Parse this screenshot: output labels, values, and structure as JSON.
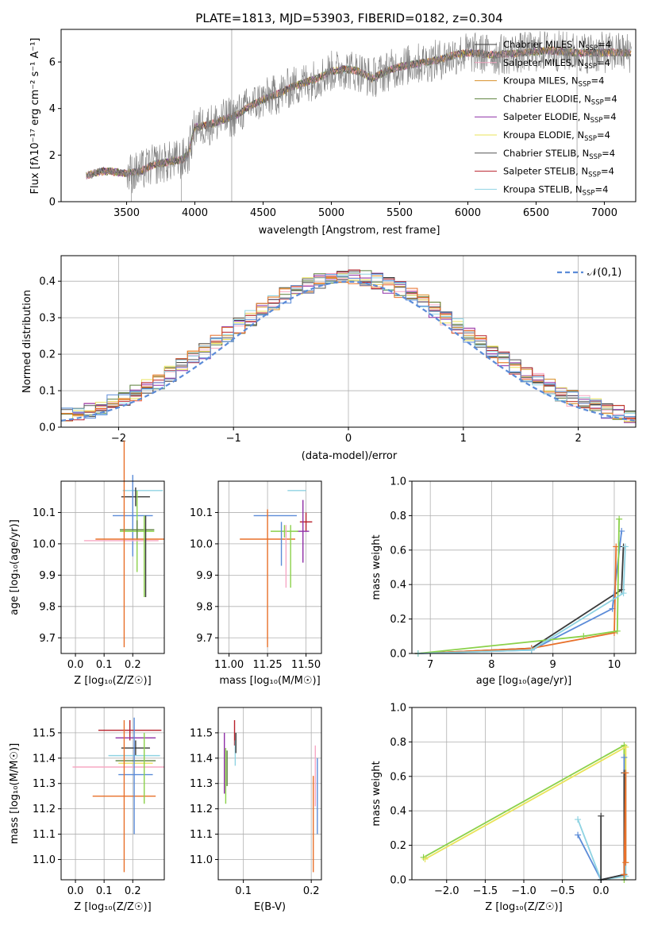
{
  "charts": {
    "spectrum": {
      "type": "line",
      "title": "PLATE=1813, MJD=53903, FIBERID=0182, z=0.304",
      "xlabel": "wavelength [Angstrom, rest frame]",
      "ylabel": "Flux [fλ10⁻¹⁷ erg cm⁻² s⁻¹ A⁻¹]",
      "xlim": [
        3020,
        7230
      ],
      "ylim": [
        0,
        7.4
      ],
      "xticks": [
        3500,
        4000,
        4500,
        5000,
        5500,
        6000,
        6500,
        7000
      ],
      "yticks": [
        0,
        2,
        4,
        6
      ],
      "legend_position": "right",
      "series": [
        {
          "name": "Chabrier MILES, N_SSP=4",
          "color": "#3a3a3a"
        },
        {
          "name": "Salpeter MILES, N_SSP=4",
          "color": "#f7a8c4"
        },
        {
          "name": "Kroupa MILES, N_SSP=4",
          "color": "#d8912a"
        },
        {
          "name": "Chabrier ELODIE, N_SSP=4",
          "color": "#5a7f3a"
        },
        {
          "name": "Salpeter ELODIE, N_SSP=4",
          "color": "#8e2fa6"
        },
        {
          "name": "Kroupa ELODIE, N_SSP=4",
          "color": "#e9e35a"
        },
        {
          "name": "Chabrier STELIB, N_SSP=4",
          "color": "#555555"
        },
        {
          "name": "Salpeter STELIB, N_SSP=4",
          "color": "#b8212b"
        },
        {
          "name": "Kroupa STELIB, N_SSP=4",
          "color": "#8fd3e2"
        }
      ],
      "shape_points": [
        [
          3200,
          1.1
        ],
        [
          3300,
          1.3
        ],
        [
          3400,
          1.3
        ],
        [
          3500,
          1.2
        ],
        [
          3600,
          1.3
        ],
        [
          3700,
          1.6
        ],
        [
          3800,
          1.7
        ],
        [
          3900,
          1.8
        ],
        [
          3950,
          2.0
        ],
        [
          4000,
          3.2
        ],
        [
          4100,
          3.3
        ],
        [
          4200,
          3.5
        ],
        [
          4300,
          3.7
        ],
        [
          4400,
          4.1
        ],
        [
          4500,
          4.4
        ],
        [
          4600,
          4.6
        ],
        [
          4700,
          4.9
        ],
        [
          4800,
          5.1
        ],
        [
          4900,
          5.3
        ],
        [
          5000,
          5.6
        ],
        [
          5100,
          5.7
        ],
        [
          5200,
          5.6
        ],
        [
          5300,
          5.3
        ],
        [
          5400,
          5.6
        ],
        [
          5500,
          5.8
        ],
        [
          5600,
          5.9
        ],
        [
          5700,
          6.0
        ],
        [
          5800,
          6.1
        ],
        [
          5900,
          6.3
        ],
        [
          6000,
          6.4
        ],
        [
          6200,
          6.3
        ],
        [
          6400,
          6.4
        ],
        [
          6600,
          6.5
        ],
        [
          6800,
          6.4
        ],
        [
          7000,
          6.4
        ],
        [
          7200,
          6.4
        ]
      ]
    },
    "residuals": {
      "type": "histogram",
      "xlabel": "(data-model)/error",
      "ylabel": "Normed distribution",
      "xlim": [
        -2.5,
        2.5
      ],
      "ylim": [
        0,
        0.47
      ],
      "xticks": [
        -2,
        -1,
        0,
        1,
        2
      ],
      "yticks": [
        0.0,
        0.1,
        0.2,
        0.3,
        0.4
      ],
      "legend": "𝒩(0,1)",
      "normal_color": "#5b8bd8",
      "bin_width": 0.1
    },
    "age_vs_Z": {
      "type": "errorbar",
      "xlabel": "Z [log₁₀(Z/Z☉)]",
      "ylabel": "age  [log₁₀(age/yr)]",
      "xlim": [
        -0.05,
        0.31
      ],
      "ylim": [
        9.65,
        10.2
      ],
      "xticks": [
        0.0,
        0.1,
        0.2
      ],
      "yticks": [
        9.7,
        9.8,
        9.9,
        10.0,
        10.1
      ],
      "points": [
        {
          "x": 0.235,
          "xerr": 0.07,
          "y": 10.17,
          "yerr": 0.0,
          "color": "#8fd3e2"
        },
        {
          "x": 0.21,
          "xerr": 0.05,
          "y": 10.15,
          "yerr": 0.03,
          "color": "#3a3a3a"
        },
        {
          "x": 0.2,
          "xerr": 0.07,
          "y": 10.09,
          "yerr": 0.13,
          "color": "#5b8bd8"
        },
        {
          "x": 0.215,
          "xerr": 0.06,
          "y": 10.04,
          "yerr": 0.13,
          "color": "#8bd14a"
        },
        {
          "x": 0.215,
          "xerr": 0.06,
          "y": 10.045,
          "yerr": 0.03,
          "color": "#5a7f3a"
        },
        {
          "x": 0.16,
          "xerr": 0.13,
          "y": 10.01,
          "yerr": 0.0,
          "color": "#f7a8c4"
        },
        {
          "x": 0.19,
          "xerr": 0.12,
          "y": 10.015,
          "yerr": 0.0,
          "color": "#e8702a"
        },
        {
          "x": 0.17,
          "xerr": 0.0,
          "y": 10.0,
          "yerr": 0.33,
          "color": "#e8702a"
        },
        {
          "x": 0.245,
          "xerr": 0.0,
          "y": 9.96,
          "yerr": 0.13,
          "color": "#3a3a3a"
        },
        {
          "x": 0.24,
          "xerr": 0.0,
          "y": 9.96,
          "yerr": 0.13,
          "color": "#8bd14a"
        }
      ]
    },
    "age_vs_mass": {
      "type": "errorbar",
      "xlabel": "mass [log₁₀(M/M☉)]",
      "xlim": [
        10.93,
        11.6
      ],
      "ylim": [
        9.65,
        10.2
      ],
      "xticks": [
        11.0,
        11.25,
        11.5
      ],
      "xticklabels": [
        "11.00",
        "11.25",
        "11.50"
      ],
      "yticks": [
        9.7,
        9.8,
        9.9,
        10.0,
        10.1
      ],
      "points": [
        {
          "x": 11.44,
          "xerr": 0.06,
          "y": 10.17,
          "yerr": 0.0,
          "color": "#8fd3e2"
        },
        {
          "x": 11.5,
          "xerr": 0.04,
          "y": 10.07,
          "yerr": 0.03,
          "color": "#b8212b"
        },
        {
          "x": 11.3,
          "xerr": 0.14,
          "y": 10.09,
          "yerr": 0.0,
          "color": "#5b8bd8"
        },
        {
          "x": 11.48,
          "xerr": 0.04,
          "y": 10.04,
          "yerr": 0.1,
          "color": "#8e2fa6"
        },
        {
          "x": 11.36,
          "xerr": 0.09,
          "y": 10.04,
          "yerr": 0.02,
          "color": "#8bd14a"
        },
        {
          "x": 11.25,
          "xerr": 0.18,
          "y": 10.015,
          "yerr": 0.0,
          "color": "#e8702a"
        },
        {
          "x": 11.25,
          "xerr": 0.0,
          "y": 9.89,
          "yerr": 0.22,
          "color": "#e8702a"
        },
        {
          "x": 11.37,
          "xerr": 0.0,
          "y": 9.96,
          "yerr": 0.1,
          "color": "#f7a8c4"
        },
        {
          "x": 11.4,
          "xerr": 0.0,
          "y": 9.96,
          "yerr": 0.1,
          "color": "#8bd14a"
        },
        {
          "x": 11.34,
          "xerr": 0.0,
          "y": 10.0,
          "yerr": 0.07,
          "color": "#5b8bd8"
        }
      ]
    },
    "weight_vs_age": {
      "type": "line",
      "xlabel": "age  [log₁₀(age/yr)]",
      "ylabel": "mass weight",
      "xlim": [
        6.7,
        10.35
      ],
      "ylim": [
        0,
        1.0
      ],
      "xticks": [
        7,
        8,
        9,
        10
      ],
      "yticks": [
        0.0,
        0.2,
        0.4,
        0.6,
        0.8,
        1.0
      ],
      "series": [
        {
          "color": "#3a3a3a",
          "x": [
            6.8,
            8.65,
            10.12,
            10.15
          ],
          "y": [
            0.0,
            0.03,
            0.37,
            0.62
          ]
        },
        {
          "color": "#5b8bd8",
          "x": [
            6.8,
            8.65,
            9.97,
            10.12
          ],
          "y": [
            0.0,
            0.02,
            0.26,
            0.71
          ]
        },
        {
          "color": "#e8702a",
          "x": [
            6.8,
            8.65,
            10.0,
            10.03
          ],
          "y": [
            0.0,
            0.03,
            0.12,
            0.62
          ]
        },
        {
          "color": "#8bd14a",
          "x": [
            6.8,
            9.5,
            10.05,
            10.08
          ],
          "y": [
            0.0,
            0.1,
            0.13,
            0.78
          ]
        },
        {
          "color": "#8fd3e2",
          "x": [
            6.8,
            8.65,
            10.15,
            10.18
          ],
          "y": [
            0.0,
            0.02,
            0.35,
            0.62
          ]
        }
      ]
    },
    "mass_vs_Z": {
      "type": "errorbar",
      "xlabel": "Z [log₁₀(Z/Z☉)]",
      "ylabel": "mass [log₁₀(M/M☉)]",
      "xlim": [
        -0.05,
        0.31
      ],
      "ylim": [
        10.92,
        11.6
      ],
      "xticks": [
        0.0,
        0.1,
        0.2
      ],
      "yticks": [
        11.0,
        11.1,
        11.2,
        11.3,
        11.4,
        11.5
      ],
      "points": [
        {
          "x": 0.19,
          "xerr": 0.11,
          "y": 11.51,
          "yerr": 0.04,
          "color": "#b8212b"
        },
        {
          "x": 0.21,
          "xerr": 0.07,
          "y": 11.48,
          "yerr": 0.0,
          "color": "#8e2fa6"
        },
        {
          "x": 0.21,
          "xerr": 0.05,
          "y": 11.44,
          "yerr": 0.03,
          "color": "#3a3a3a"
        },
        {
          "x": 0.205,
          "xerr": 0.09,
          "y": 11.41,
          "yerr": 0.0,
          "color": "#8fd3e2"
        },
        {
          "x": 0.21,
          "xerr": 0.07,
          "y": 11.39,
          "yerr": 0.0,
          "color": "#5a7f3a"
        },
        {
          "x": 0.21,
          "xerr": 0.06,
          "y": 11.38,
          "yerr": 0.0,
          "color": "#e9e35a"
        },
        {
          "x": 0.15,
          "xerr": 0.16,
          "y": 11.365,
          "yerr": 0.0,
          "color": "#f7a8c4"
        },
        {
          "x": 0.21,
          "xerr": 0.06,
          "y": 11.335,
          "yerr": 0.0,
          "color": "#5b8bd8"
        },
        {
          "x": 0.17,
          "xerr": 0.11,
          "y": 11.25,
          "yerr": 0.0,
          "color": "#e8702a"
        },
        {
          "x": 0.17,
          "xerr": 0.0,
          "y": 11.25,
          "yerr": 0.3,
          "color": "#e8702a"
        },
        {
          "x": 0.205,
          "xerr": 0.0,
          "y": 11.33,
          "yerr": 0.23,
          "color": "#5b8bd8"
        },
        {
          "x": 0.24,
          "xerr": 0.0,
          "y": 11.36,
          "yerr": 0.14,
          "color": "#8bd14a"
        }
      ]
    },
    "mass_vs_ebv": {
      "type": "errorbar",
      "xlabel": "E(B-V)",
      "xlim": [
        0.063,
        0.215
      ],
      "ylim": [
        10.92,
        11.6
      ],
      "xticks": [
        0.1,
        0.2
      ],
      "yticks": [
        11.0,
        11.1,
        11.2,
        11.3,
        11.4,
        11.5
      ],
      "points": [
        {
          "x": 0.072,
          "xerr": 0.0,
          "y": 11.38,
          "yerr": 0.12,
          "color": "#8e2fa6"
        },
        {
          "x": 0.074,
          "xerr": 0.0,
          "y": 11.33,
          "yerr": 0.11,
          "color": "#8bd14a"
        },
        {
          "x": 0.076,
          "xerr": 0.0,
          "y": 11.36,
          "yerr": 0.07,
          "color": "#5a7f3a"
        },
        {
          "x": 0.087,
          "xerr": 0.0,
          "y": 11.5,
          "yerr": 0.05,
          "color": "#b8212b"
        },
        {
          "x": 0.088,
          "xerr": 0.0,
          "y": 11.42,
          "yerr": 0.05,
          "color": "#8fd3e2"
        },
        {
          "x": 0.089,
          "xerr": 0.0,
          "y": 11.46,
          "yerr": 0.04,
          "color": "#3a3a3a"
        },
        {
          "x": 0.203,
          "xerr": 0.0,
          "y": 11.14,
          "yerr": 0.19,
          "color": "#e8702a"
        },
        {
          "x": 0.206,
          "xerr": 0.0,
          "y": 11.33,
          "yerr": 0.12,
          "color": "#f7a8c4"
        },
        {
          "x": 0.209,
          "xerr": 0.0,
          "y": 11.25,
          "yerr": 0.15,
          "color": "#5b8bd8"
        }
      ]
    },
    "weight_vs_Z": {
      "type": "line",
      "xlabel": "Z [log₁₀(Z/Z☉)]",
      "ylabel": "mass weight",
      "xlim": [
        -2.45,
        0.45
      ],
      "ylim": [
        0,
        1.0
      ],
      "xticks": [
        -2.0,
        -1.5,
        -1.0,
        -0.5,
        0.0
      ],
      "yticks": [
        0.0,
        0.2,
        0.4,
        0.6,
        0.8,
        1.0
      ],
      "series": [
        {
          "color": "#8bd14a",
          "x": [
            -2.3,
            0.3,
            0.3
          ],
          "y": [
            0.13,
            0.78,
            0.0
          ]
        },
        {
          "color": "#e9e35a",
          "x": [
            -2.28,
            0.32,
            0.32
          ],
          "y": [
            0.12,
            0.77,
            0.1
          ]
        },
        {
          "color": "#5b8bd8",
          "x": [
            -0.3,
            0.0,
            0.3,
            0.3
          ],
          "y": [
            0.26,
            0.0,
            0.03,
            0.71
          ]
        },
        {
          "color": "#8fd3e2",
          "x": [
            -0.3,
            0.0,
            0.32,
            0.32
          ],
          "y": [
            0.35,
            0.0,
            0.02,
            0.62
          ]
        },
        {
          "color": "#3a3a3a",
          "x": [
            0.0,
            0.0,
            0.3,
            0.3
          ],
          "y": [
            0.37,
            0.0,
            0.03,
            0.62
          ]
        },
        {
          "color": "#e8702a",
          "x": [
            0.3,
            0.32,
            0.32
          ],
          "y": [
            0.03,
            0.62,
            0.1
          ]
        }
      ]
    }
  }
}
